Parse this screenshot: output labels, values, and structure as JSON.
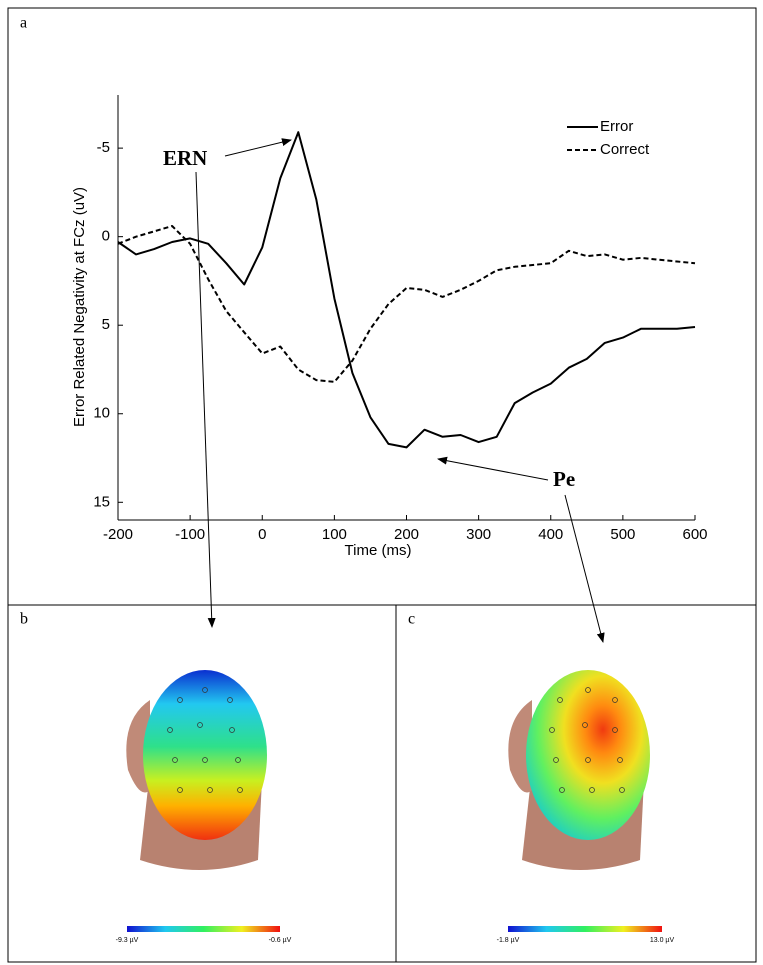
{
  "chart_data": {
    "type": "line",
    "x_label": "Time (ms)",
    "y_label": "Error Related Negativity at FCz (uV)",
    "x": [
      -200,
      -175,
      -150,
      -125,
      -100,
      -75,
      -50,
      -25,
      0,
      25,
      50,
      75,
      100,
      125,
      150,
      175,
      200,
      225,
      250,
      275,
      300,
      325,
      350,
      375,
      400,
      425,
      450,
      475,
      500,
      525,
      550,
      575,
      600
    ],
    "series": [
      {
        "name": "Error",
        "color": "#000000",
        "line_style": "solid",
        "values": [
          0.3,
          1.0,
          0.7,
          0.3,
          0.1,
          0.4,
          1.5,
          2.7,
          0.6,
          -3.3,
          -5.9,
          -2.1,
          3.5,
          7.7,
          10.2,
          11.7,
          11.9,
          10.9,
          11.3,
          11.2,
          11.6,
          11.3,
          9.4,
          8.8,
          8.3,
          7.4,
          6.9,
          6.0,
          5.7,
          5.2,
          5.2,
          5.2,
          5.1
        ]
      },
      {
        "name": "Correct",
        "color": "#000000",
        "line_style": "dashed",
        "values": [
          0.4,
          0.0,
          -0.3,
          -0.6,
          0.4,
          2.4,
          4.2,
          5.4,
          6.6,
          6.2,
          7.5,
          8.1,
          8.2,
          7.0,
          5.2,
          3.8,
          2.9,
          3.0,
          3.4,
          3.0,
          2.5,
          1.9,
          1.7,
          1.6,
          1.5,
          0.8,
          1.1,
          1.0,
          1.3,
          1.2,
          1.3,
          1.4,
          1.5
        ]
      }
    ],
    "xlim": [
      -200,
      600
    ],
    "xticks": [
      -200,
      -100,
      0,
      100,
      200,
      300,
      400,
      500,
      600
    ],
    "ylim": [
      -8,
      16
    ],
    "yticks": [
      -5,
      0,
      5,
      10,
      15
    ],
    "y_inverted": true,
    "legend": "upper right",
    "annotations": [
      {
        "text": "ERN"
      },
      {
        "text": "Pe"
      }
    ]
  },
  "figure": {
    "panel_labels": [
      "a",
      "b",
      "c"
    ],
    "colorbars": [
      {
        "min_label": "-9.3 µV",
        "max_label": "-0.6 µV"
      },
      {
        "min_label": "-1.8 µV",
        "max_label": "13.0 µV"
      }
    ]
  }
}
